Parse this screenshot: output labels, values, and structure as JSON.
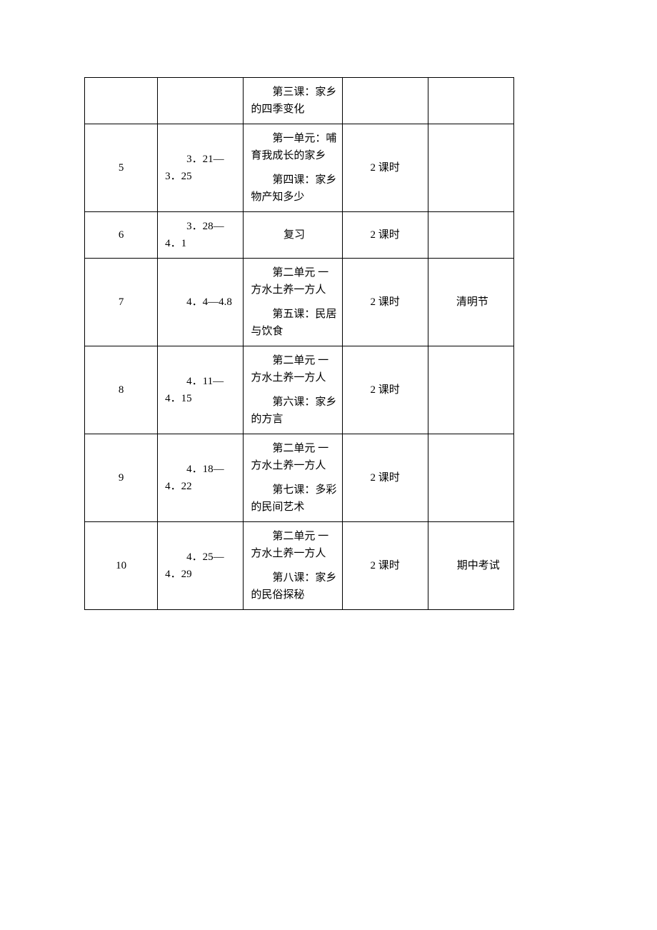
{
  "table": {
    "border_color": "#000000",
    "background_color": "#ffffff",
    "font_family": "SimSun",
    "font_size": 15,
    "columns": {
      "week_width": 102,
      "date_width": 120,
      "content_width": 138,
      "hours_width": 120,
      "notes_width": 120
    },
    "rows": [
      {
        "week": "",
        "date": "",
        "content_unit": "",
        "content_lesson": "第三课：家乡的四季变化",
        "hours": "",
        "notes": ""
      },
      {
        "week": "5",
        "date": "3．21—3．25",
        "content_unit": "第一单元：哺育我成长的家乡",
        "content_lesson": "第四课：家乡物产知多少",
        "hours": "2 课时",
        "notes": ""
      },
      {
        "week": "6",
        "date": "3．28—4．1",
        "content_unit": "",
        "content_lesson": "复习",
        "hours": "2 课时",
        "notes": ""
      },
      {
        "week": "7",
        "date": "4．4—4.8",
        "content_unit": "第二单元 一方水土养一方人",
        "content_lesson": "第五课：民居与饮食",
        "hours": "2 课时",
        "notes": "清明节"
      },
      {
        "week": "8",
        "date": "4．11—4．15",
        "content_unit": "第二单元 一方水土养一方人",
        "content_lesson": "第六课：家乡的方言",
        "hours": "2 课时",
        "notes": ""
      },
      {
        "week": "9",
        "date": "4．18—4．22",
        "content_unit": "第二单元 一方水土养一方人",
        "content_lesson": "第七课：多彩的民间艺术",
        "hours": "2 课时",
        "notes": ""
      },
      {
        "week": "10",
        "date": "4．25—4．29",
        "content_unit": "第二单元 一方水土养一方人",
        "content_lesson": "第八课：家乡的民俗探秘",
        "hours": "2 课时",
        "notes": "期中考试"
      }
    ]
  }
}
